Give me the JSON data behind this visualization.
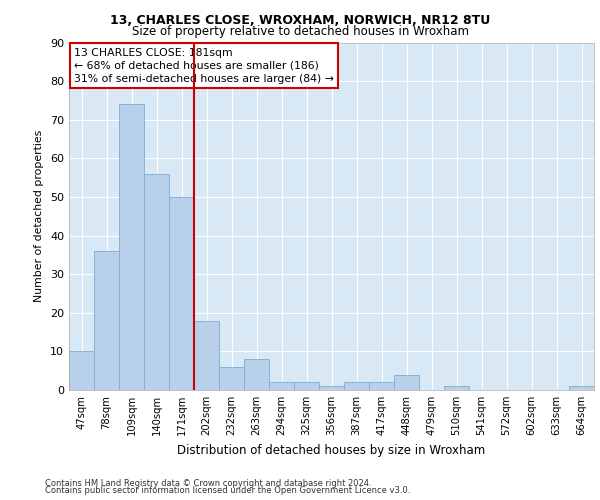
{
  "title1": "13, CHARLES CLOSE, WROXHAM, NORWICH, NR12 8TU",
  "title2": "Size of property relative to detached houses in Wroxham",
  "xlabel": "Distribution of detached houses by size in Wroxham",
  "ylabel": "Number of detached properties",
  "categories": [
    "47sqm",
    "78sqm",
    "109sqm",
    "140sqm",
    "171sqm",
    "202sqm",
    "232sqm",
    "263sqm",
    "294sqm",
    "325sqm",
    "356sqm",
    "387sqm",
    "417sqm",
    "448sqm",
    "479sqm",
    "510sqm",
    "541sqm",
    "572sqm",
    "602sqm",
    "633sqm",
    "664sqm"
  ],
  "values": [
    10,
    36,
    74,
    56,
    50,
    18,
    6,
    8,
    2,
    2,
    1,
    2,
    2,
    4,
    0,
    1,
    0,
    0,
    0,
    0,
    1
  ],
  "bar_color": "#b8d0ea",
  "bar_edge_color": "#7aadd4",
  "vline_x": 4.5,
  "vline_color": "#cc0000",
  "annotation_text": "13 CHARLES CLOSE: 181sqm\n← 68% of detached houses are smaller (186)\n31% of semi-detached houses are larger (84) →",
  "annotation_box_color": "#ffffff",
  "annotation_box_edge": "#cc0000",
  "ylim": [
    0,
    90
  ],
  "yticks": [
    0,
    10,
    20,
    30,
    40,
    50,
    60,
    70,
    80,
    90
  ],
  "bg_color": "#d9e8f5",
  "grid_color": "#ffffff",
  "footer1": "Contains HM Land Registry data © Crown copyright and database right 2024.",
  "footer2": "Contains public sector information licensed under the Open Government Licence v3.0."
}
